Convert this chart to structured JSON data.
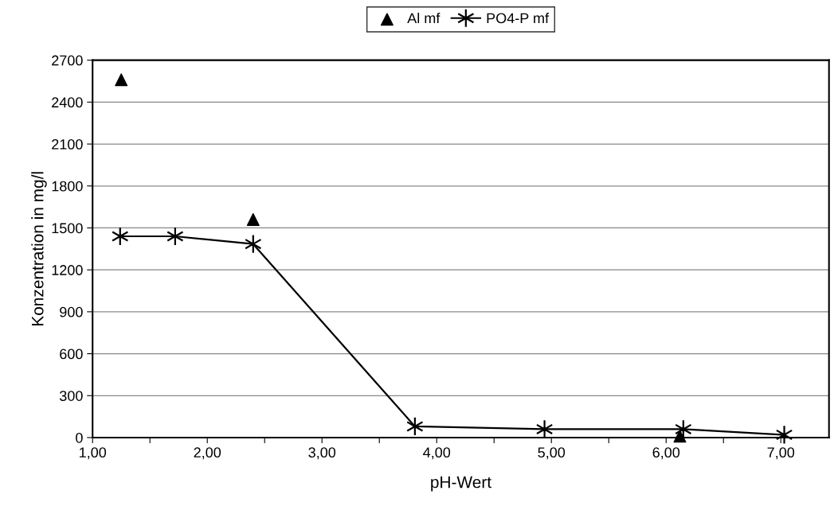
{
  "chart_data": {
    "type": "line",
    "xlabel": "pH-Wert",
    "ylabel": "Konzentration in mg/l",
    "series": [
      {
        "name": "Al mf",
        "type": "scatter",
        "marker": "triangle",
        "color": "#000000",
        "x": [
          1.25,
          2.4,
          6.12
        ],
        "values": [
          2560,
          1560,
          10
        ]
      },
      {
        "name": "PO4-P mf",
        "marker": "cross",
        "line_style": "solid",
        "color": "#000000",
        "x": [
          1.24,
          1.72,
          2.4,
          3.81,
          4.94,
          6.15,
          7.03
        ],
        "values": [
          1440,
          1440,
          1385,
          80,
          60,
          60,
          20
        ]
      }
    ],
    "xlim": [
      1.0,
      7.42
    ],
    "ylim": [
      0,
      2700
    ],
    "xticks": [
      {
        "value": 1,
        "label": "1,00"
      },
      {
        "value": 1.5,
        "label": null
      },
      {
        "value": 2,
        "label": "2,00"
      },
      {
        "value": 2.5,
        "label": null
      },
      {
        "value": 3,
        "label": "3,00"
      },
      {
        "value": 3.5,
        "label": null
      },
      {
        "value": 4,
        "label": "4,00"
      },
      {
        "value": 4.5,
        "label": null
      },
      {
        "value": 5,
        "label": "5,00"
      },
      {
        "value": 5.5,
        "label": null
      },
      {
        "value": 6,
        "label": "6,00"
      },
      {
        "value": 6.5,
        "label": null
      },
      {
        "value": 7,
        "label": "7,00"
      }
    ],
    "yticks": [
      0,
      300,
      600,
      900,
      1200,
      1500,
      1800,
      2100,
      2400,
      2700
    ],
    "grid": "y",
    "legend": "top"
  }
}
